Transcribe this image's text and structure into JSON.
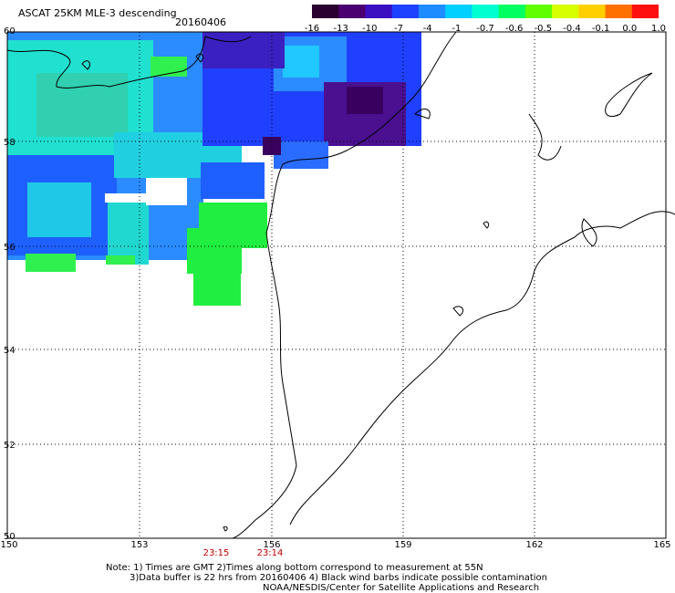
{
  "title": "ASCAT 25KM MLE-3 descending",
  "date": "20160406",
  "colorbar": {
    "labels": [
      "-16",
      "-13",
      "-10",
      "-7",
      "-4",
      "-1",
      "-0.7",
      "-0.6",
      "-0.5",
      "-0.4",
      "-0.1",
      "0.0",
      "1.0"
    ],
    "colors": [
      "#2a0030",
      "#4a0070",
      "#3a10c0",
      "#1e40ff",
      "#1e8cff",
      "#00d0ff",
      "#00ffd0",
      "#00ff60",
      "#60ff00",
      "#d8ff00",
      "#ffd000",
      "#ff7000",
      "#ff1010"
    ]
  },
  "map": {
    "lat_labels": [
      "60",
      "58",
      "56",
      "54",
      "52",
      "50"
    ],
    "lon_labels": [
      "150",
      "153",
      "156",
      "159",
      "162",
      "165"
    ],
    "time_labels": [
      "23:15",
      "23:14"
    ]
  },
  "notes": [
    "Note: 1) Times are GMT 2)Times along bottom correspond to measurement at 55N",
    "3)Data buffer is 22 hrs from 20160406 4) Black wind barbs indicate possible contamination",
    "NOAA/NESDIS/Center for Satellite Applications and Research"
  ]
}
